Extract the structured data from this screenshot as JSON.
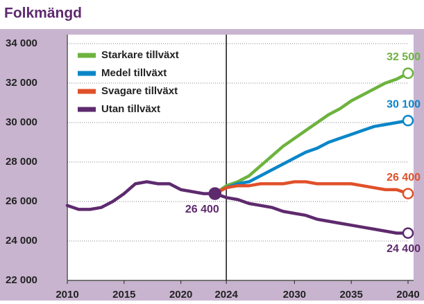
{
  "chart_data": {
    "type": "line",
    "title": "Folkmängd",
    "x": [
      2010,
      2011,
      2012,
      2013,
      2014,
      2015,
      2016,
      2017,
      2018,
      2019,
      2020,
      2021,
      2022,
      2023,
      2024,
      2025,
      2026,
      2027,
      2028,
      2029,
      2030,
      2031,
      2032,
      2033,
      2034,
      2035,
      2036,
      2037,
      2038,
      2039,
      2040
    ],
    "series": [
      {
        "name": "Starkare tillväxt",
        "color": "#6db33f",
        "values": [
          null,
          null,
          null,
          null,
          null,
          null,
          null,
          null,
          null,
          null,
          null,
          null,
          null,
          26400,
          26800,
          27000,
          27300,
          27800,
          28300,
          28800,
          29200,
          29600,
          30000,
          30400,
          30700,
          31100,
          31400,
          31700,
          32000,
          32200,
          32500
        ],
        "value_labels": [
          null,
          null,
          null,
          null,
          null,
          null,
          null,
          null,
          null,
          null,
          null,
          null,
          null,
          null,
          null,
          null,
          null,
          null,
          null,
          null,
          null,
          null,
          null,
          null,
          null,
          null,
          null,
          null,
          null,
          null,
          "32 500"
        ]
      },
      {
        "name": "Medel tillväxt",
        "color": "#0a86c8",
        "values": [
          null,
          null,
          null,
          null,
          null,
          null,
          null,
          null,
          null,
          null,
          null,
          null,
          null,
          26400,
          26700,
          26900,
          27000,
          27300,
          27600,
          27900,
          28200,
          28500,
          28700,
          29000,
          29200,
          29400,
          29600,
          29800,
          29900,
          30000,
          30100
        ],
        "value_labels": [
          null,
          null,
          null,
          null,
          null,
          null,
          null,
          null,
          null,
          null,
          null,
          null,
          null,
          null,
          null,
          null,
          null,
          null,
          null,
          null,
          null,
          null,
          null,
          null,
          null,
          null,
          null,
          null,
          null,
          null,
          "30 100"
        ]
      },
      {
        "name": "Svagare tillväxt",
        "color": "#e0502a",
        "values": [
          null,
          null,
          null,
          null,
          null,
          null,
          null,
          null,
          null,
          null,
          null,
          null,
          null,
          26400,
          26700,
          26800,
          26800,
          26900,
          26900,
          26900,
          27000,
          27000,
          26900,
          26900,
          26900,
          26900,
          26800,
          26700,
          26600,
          26600,
          26400
        ],
        "value_labels": [
          null,
          null,
          null,
          null,
          null,
          null,
          null,
          null,
          null,
          null,
          null,
          null,
          null,
          null,
          null,
          null,
          null,
          null,
          null,
          null,
          null,
          null,
          null,
          null,
          null,
          null,
          null,
          null,
          null,
          null,
          "26 400"
        ]
      },
      {
        "name": "Utan tillväxt",
        "color": "#5e2a6e",
        "values": [
          25800,
          25600,
          25600,
          25700,
          26000,
          26400,
          26900,
          27000,
          26900,
          26900,
          26600,
          26500,
          26400,
          26400,
          26200,
          26100,
          25900,
          25800,
          25700,
          25500,
          25400,
          25300,
          25100,
          25000,
          24900,
          24800,
          24700,
          24600,
          24500,
          24400,
          24400
        ],
        "value_labels": [
          null,
          null,
          null,
          null,
          null,
          null,
          null,
          null,
          null,
          null,
          null,
          null,
          null,
          "26 400",
          null,
          null,
          null,
          null,
          null,
          null,
          null,
          null,
          null,
          null,
          null,
          null,
          null,
          null,
          null,
          null,
          "24 400"
        ]
      }
    ],
    "xlim": [
      2010,
      2040
    ],
    "xticks": [
      2010,
      2015,
      2020,
      2024,
      2030,
      2035,
      2040
    ],
    "ylim": [
      22000,
      34000
    ],
    "yticks": [
      {
        "value": 22000,
        "label": "22 000"
      },
      {
        "value": 24000,
        "label": "24 000"
      },
      {
        "value": 26000,
        "label": "26 000"
      },
      {
        "value": 28000,
        "label": "28 000"
      },
      {
        "value": 30000,
        "label": "30 000"
      },
      {
        "value": 32000,
        "label": "32 000"
      },
      {
        "value": 34000,
        "label": "34 000"
      }
    ],
    "vline": 2024,
    "grid": true,
    "legend": "top-left"
  }
}
